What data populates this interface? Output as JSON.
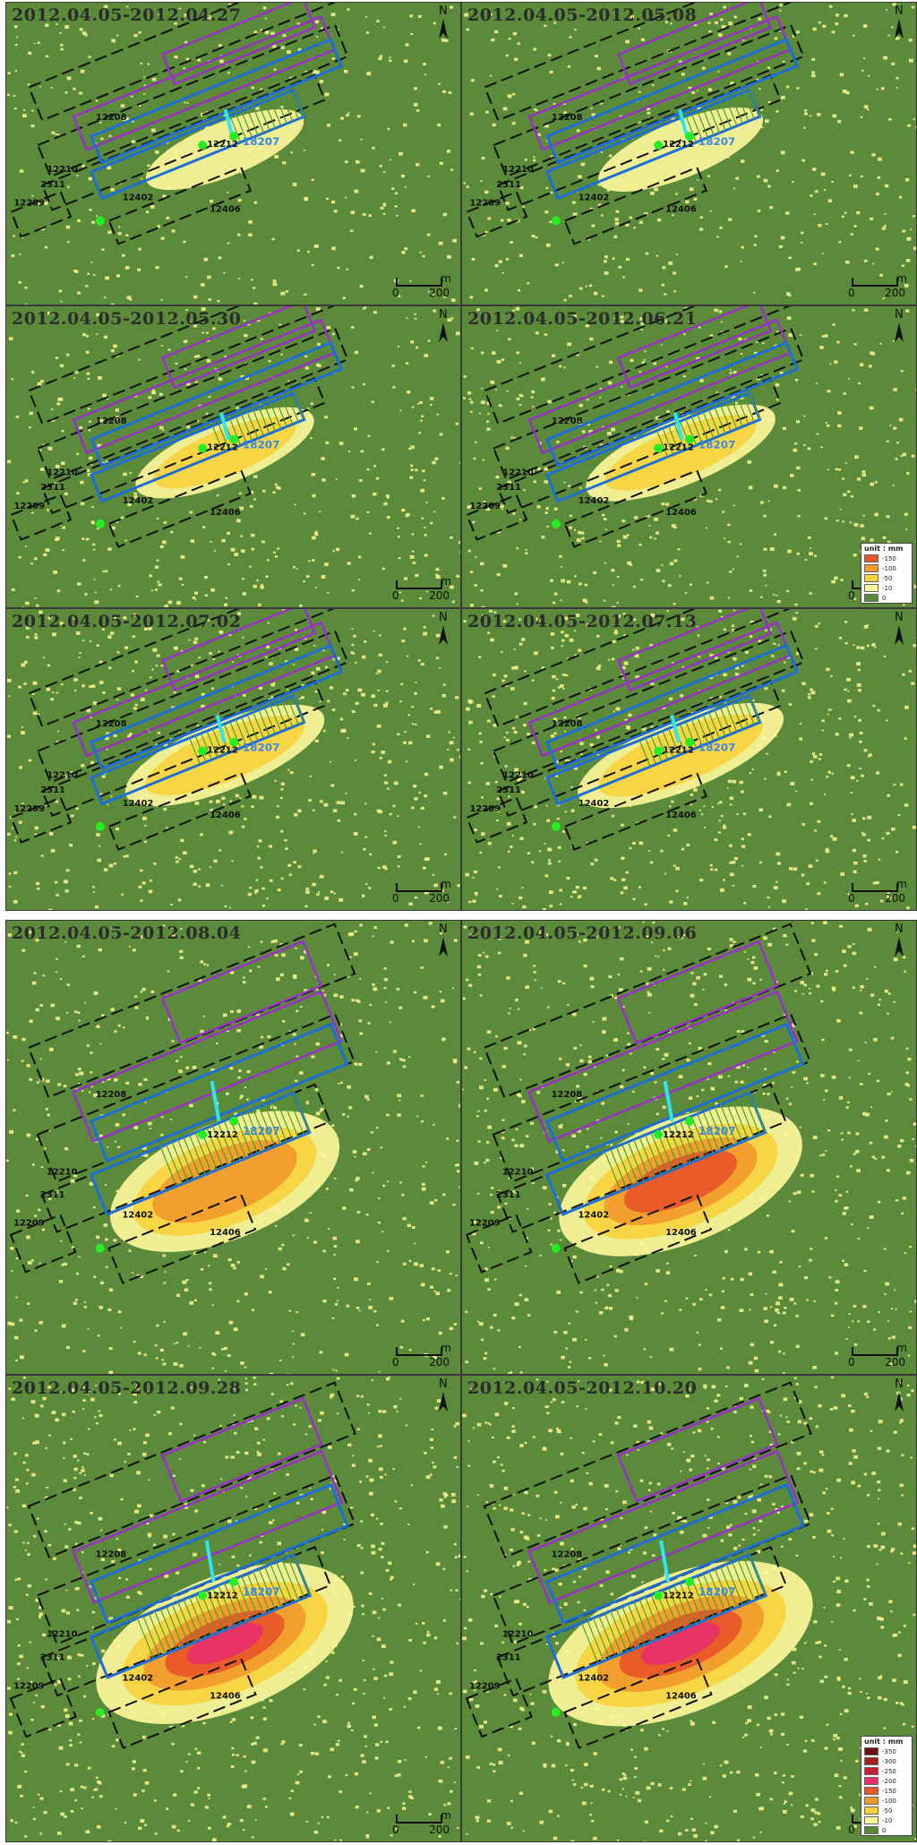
{
  "panels": [
    {
      "date": "2012.04.05-2012.04.27"
    },
    {
      "date": "2012.04.05-2012.05.08"
    },
    {
      "date": "2012.04.05-2012.05.30"
    },
    {
      "date": "2012.04.05-2012.06.21"
    },
    {
      "date": "2012.04.05-2012.07.02"
    },
    {
      "date": "2012.04.05-2012.07.13"
    },
    {
      "date": "2012.04.05-2012.08.04"
    },
    {
      "date": "2012.04.05-2012.09.06"
    },
    {
      "date": "2012.04.05-2012.09.28"
    },
    {
      "date": "2012.04.05-2012.10.20"
    }
  ],
  "map_labels": {
    "north": "N",
    "scale_unit": "m",
    "scale_zero": "0",
    "scale_max": "200",
    "panel_labels": [
      "12402",
      "12406",
      "18207",
      "12212",
      "12210",
      "12208",
      "12209",
      "2311"
    ]
  },
  "legend_small": {
    "title": "unit : mm",
    "items": [
      {
        "label": "-150",
        "color": "#e8562a"
      },
      {
        "label": "-100",
        "color": "#f29a2c"
      },
      {
        "label": "-50",
        "color": "#f7d23e"
      },
      {
        "label": "-10",
        "color": "#fdf69a"
      },
      {
        "label": "0",
        "color": "#5a8a3a"
      }
    ]
  },
  "legend_large": {
    "title": "unit : mm",
    "items": [
      {
        "label": "-350",
        "color": "#6b0f0f"
      },
      {
        "label": "-300",
        "color": "#a3231a"
      },
      {
        "label": "-250",
        "color": "#c81e3a"
      },
      {
        "label": "-200",
        "color": "#e8306a"
      },
      {
        "label": "-150",
        "color": "#e8562a"
      },
      {
        "label": "-100",
        "color": "#f29a2c"
      },
      {
        "label": "-50",
        "color": "#f7d23e"
      },
      {
        "label": "-10",
        "color": "#fdf69a"
      },
      {
        "label": "0",
        "color": "#5a8a3a"
      }
    ]
  },
  "colors": {
    "background": "#5a8a3a",
    "noise": "#f3ef8c",
    "purple_outline": "#9b30c8",
    "blue_outline": "#1e6ed8",
    "cyan_line": "#2ee6f0",
    "green_marker": "#22ee22",
    "dashed_outline": "#111111"
  },
  "subsidence_level": [
    0.15,
    0.2,
    0.3,
    0.38,
    0.45,
    0.5,
    0.65,
    0.75,
    0.85,
    0.9
  ]
}
